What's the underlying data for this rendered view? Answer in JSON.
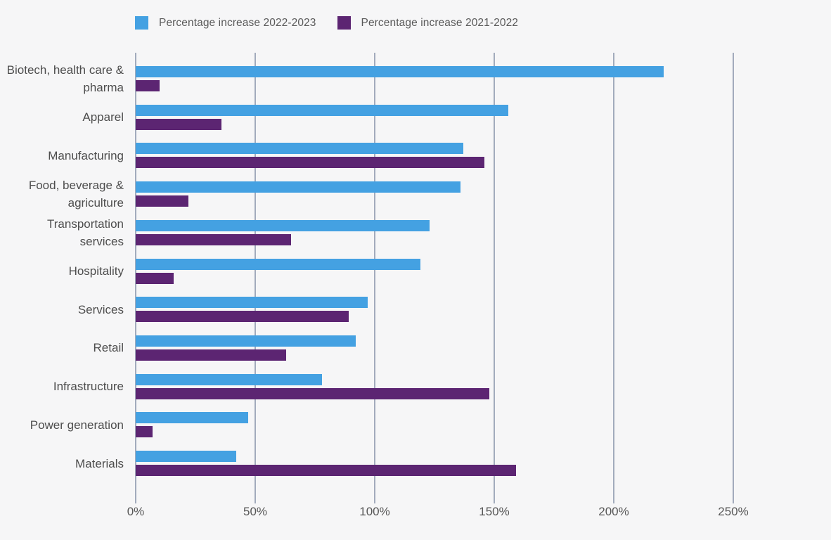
{
  "legend": {
    "items": [
      {
        "label": "Percentage increase 2022-2023",
        "color": "#44a1e2"
      },
      {
        "label": "Percentage increase 2021-2022",
        "color": "#5c2572"
      }
    ]
  },
  "chart_data": {
    "type": "bar",
    "orientation": "horizontal",
    "title": "",
    "xlabel": "",
    "ylabel": "",
    "categories": [
      "Biotech, health care & pharma",
      "Apparel",
      "Manufacturing",
      "Food, beverage & agriculture",
      "Transportation services",
      "Hospitality",
      "Services",
      "Retail",
      "Infrastructure",
      "Power generation",
      "Materials"
    ],
    "series": [
      {
        "name": "Percentage increase 2022-2023",
        "color": "#44a1e2",
        "values": [
          221,
          156,
          137,
          136,
          123,
          119,
          97,
          92,
          78,
          47,
          42
        ]
      },
      {
        "name": "Percentage increase 2021-2022",
        "color": "#5c2572",
        "values": [
          10,
          36,
          146,
          22,
          65,
          16,
          89,
          63,
          148,
          7,
          159
        ]
      }
    ],
    "unit": "%",
    "xlim": [
      0,
      250
    ],
    "x_tick_values": [
      0,
      50,
      100,
      150,
      200,
      250
    ],
    "x_tick_labels": [
      "0%",
      "50%",
      "100%",
      "150%",
      "200%",
      "250%"
    ],
    "grid": "vertical-gridlines-on",
    "legend_position": "top-left"
  },
  "colors": {
    "background": "#f6f6f7",
    "gridline": "#a2abbc",
    "category_text": "#4d4d4d",
    "tick_text": "#565656"
  }
}
